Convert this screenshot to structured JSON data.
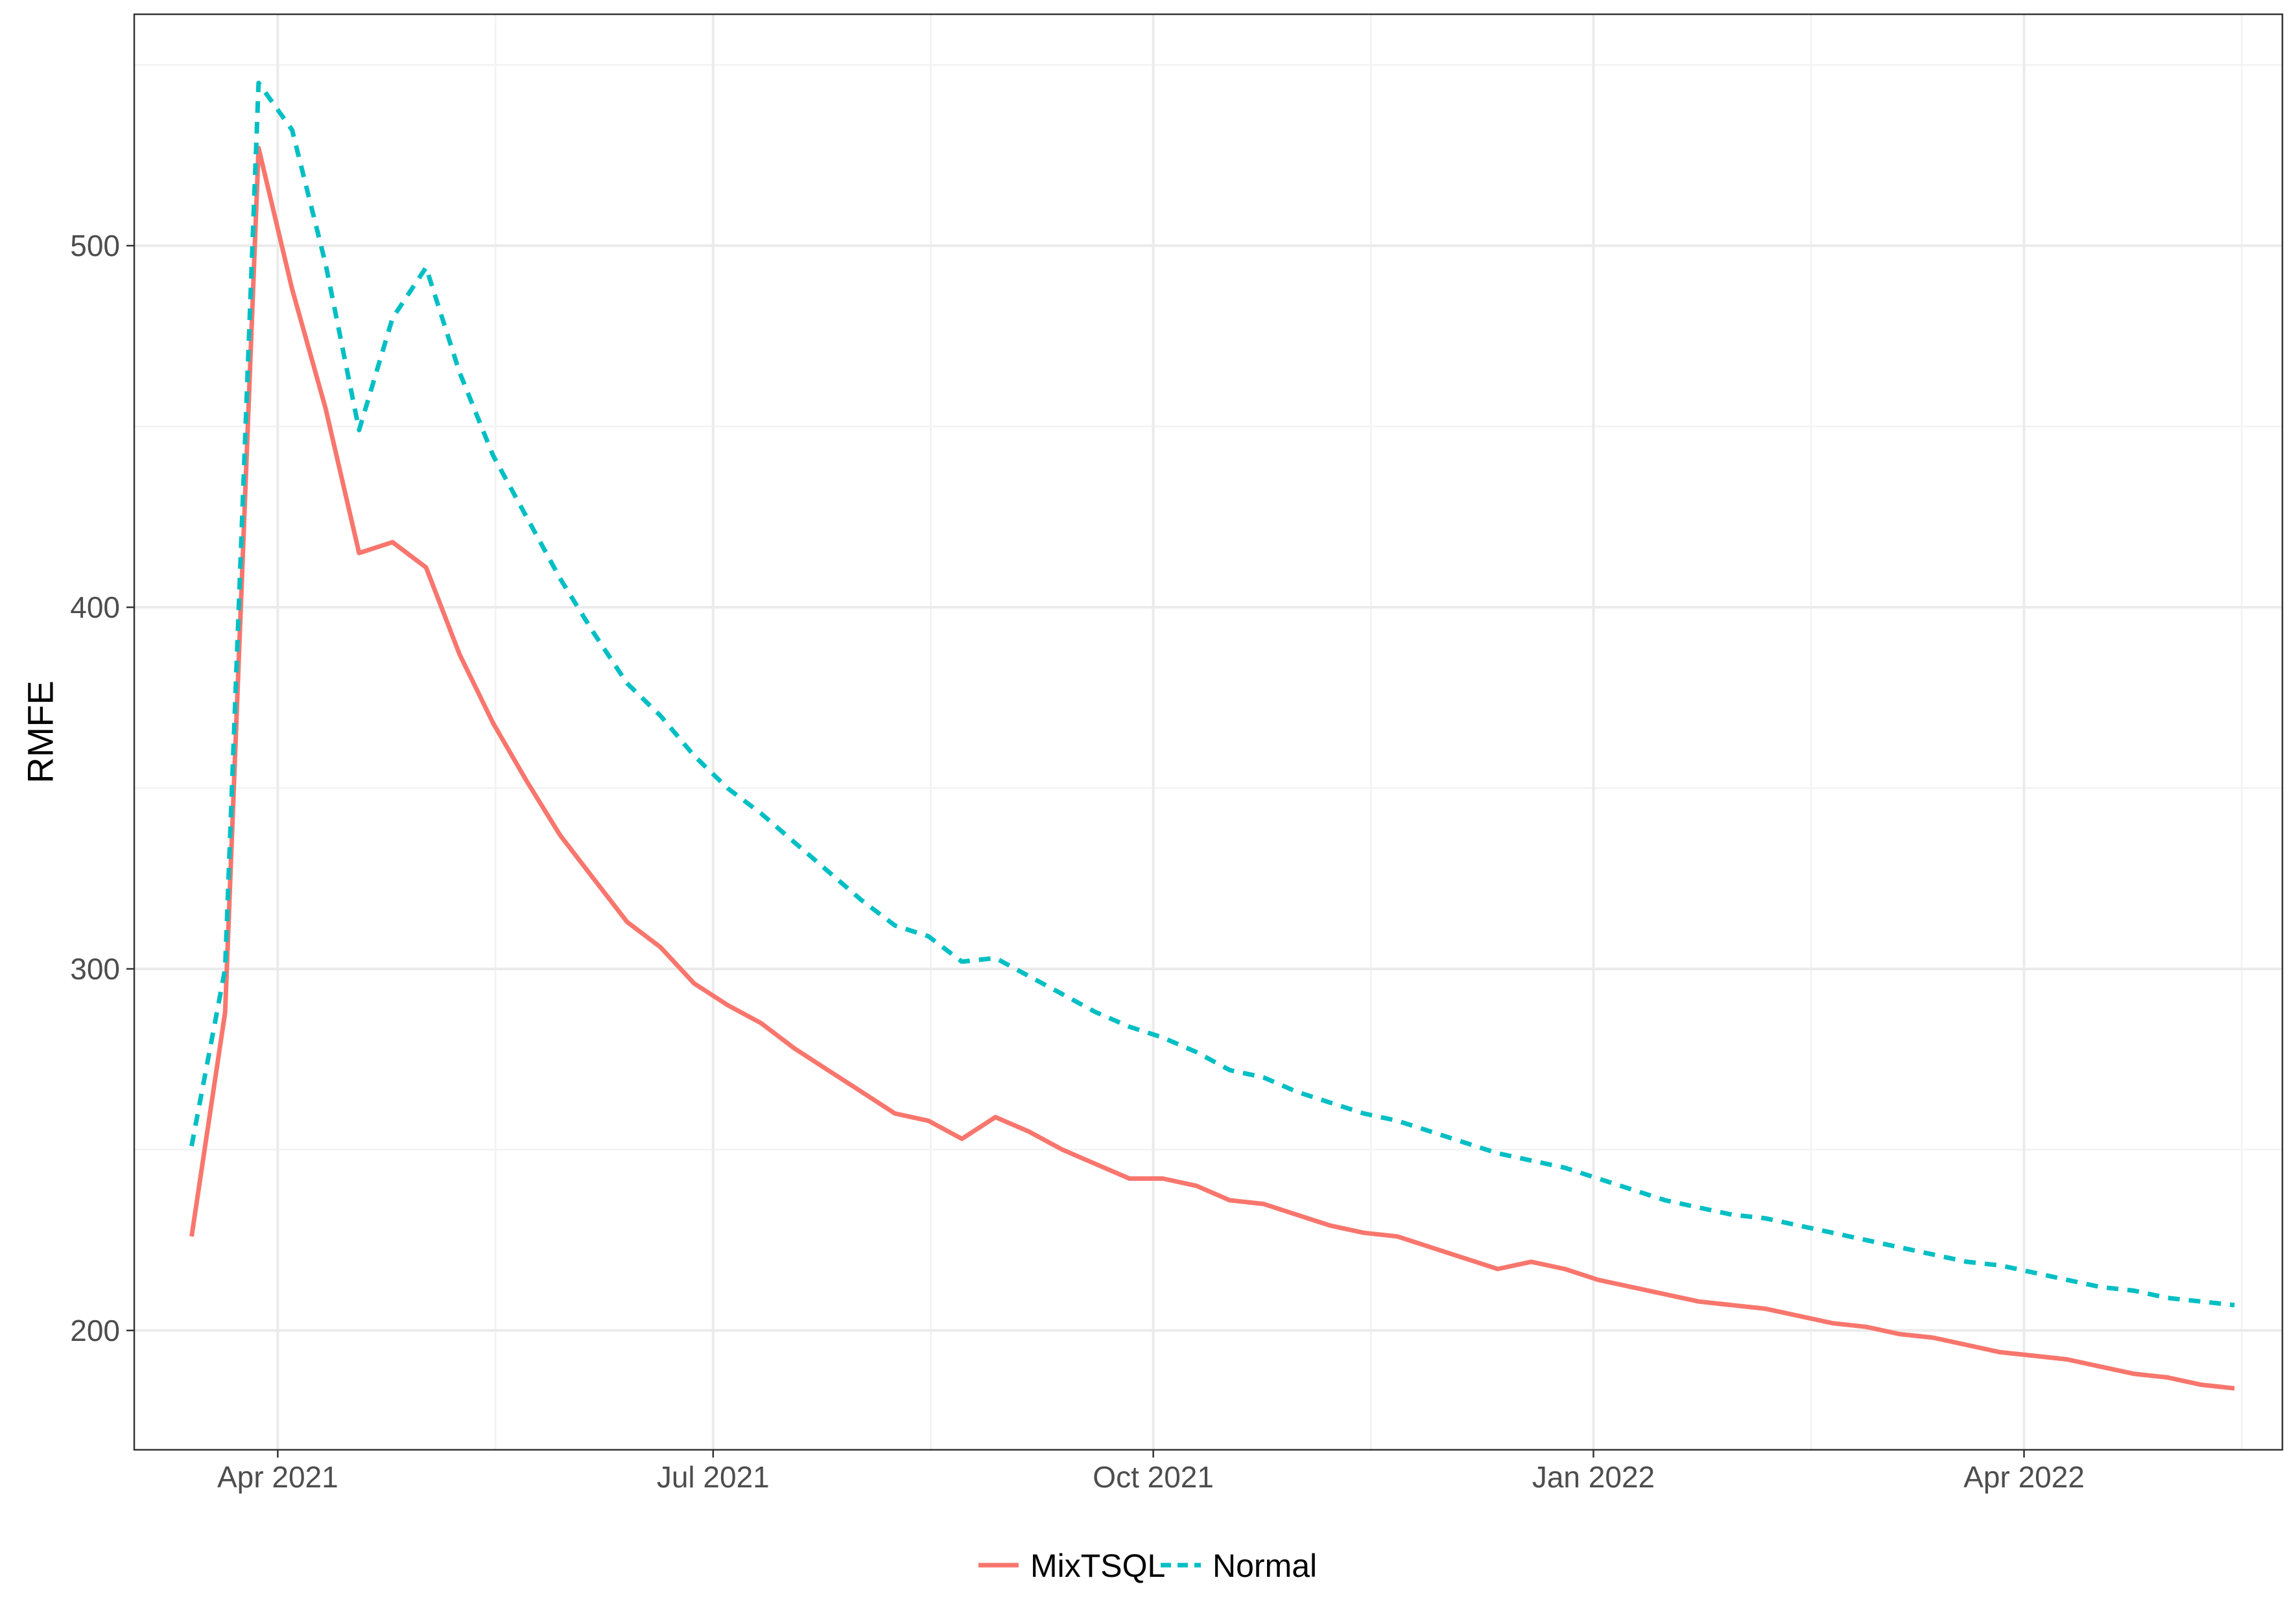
{
  "chart_data": {
    "type": "line",
    "title": "",
    "xlabel": "",
    "ylabel": "RMFE",
    "x_ticks": [
      "Apr 2021",
      "Jul 2021",
      "Oct 2021",
      "Jan 2022",
      "Apr 2022"
    ],
    "y_ticks": [
      200,
      300,
      400,
      500
    ],
    "ylim": [
      167,
      564
    ],
    "xlim": [
      "2021-03-02",
      "2022-05-25"
    ],
    "grid": true,
    "legend_position": "bottom",
    "series": [
      {
        "name": "MixTSQL",
        "color": "#F8766D",
        "line_style": "solid",
        "points": [
          [
            "2021-03-14",
            226
          ],
          [
            "2021-03-21",
            288
          ],
          [
            "2021-03-28",
            527
          ],
          [
            "2021-04-04",
            488
          ],
          [
            "2021-04-11",
            455
          ],
          [
            "2021-04-18",
            415
          ],
          [
            "2021-04-25",
            418
          ],
          [
            "2021-05-02",
            411
          ],
          [
            "2021-05-09",
            387
          ],
          [
            "2021-05-16",
            368
          ],
          [
            "2021-05-23",
            352
          ],
          [
            "2021-05-30",
            337
          ],
          [
            "2021-06-06",
            325
          ],
          [
            "2021-06-13",
            313
          ],
          [
            "2021-06-20",
            306
          ],
          [
            "2021-06-27",
            296
          ],
          [
            "2021-07-04",
            290
          ],
          [
            "2021-07-11",
            285
          ],
          [
            "2021-07-18",
            278
          ],
          [
            "2021-07-25",
            272
          ],
          [
            "2021-08-01",
            266
          ],
          [
            "2021-08-08",
            260
          ],
          [
            "2021-08-15",
            258
          ],
          [
            "2021-08-22",
            253
          ],
          [
            "2021-08-29",
            259
          ],
          [
            "2021-09-05",
            255
          ],
          [
            "2021-09-12",
            250
          ],
          [
            "2021-09-19",
            246
          ],
          [
            "2021-09-26",
            242
          ],
          [
            "2021-10-03",
            242
          ],
          [
            "2021-10-10",
            240
          ],
          [
            "2021-10-17",
            236
          ],
          [
            "2021-10-24",
            235
          ],
          [
            "2021-10-31",
            232
          ],
          [
            "2021-11-07",
            229
          ],
          [
            "2021-11-14",
            227
          ],
          [
            "2021-11-21",
            226
          ],
          [
            "2021-11-28",
            223
          ],
          [
            "2021-12-05",
            220
          ],
          [
            "2021-12-12",
            217
          ],
          [
            "2021-12-19",
            219
          ],
          [
            "2021-12-26",
            217
          ],
          [
            "2022-01-02",
            214
          ],
          [
            "2022-01-09",
            212
          ],
          [
            "2022-01-16",
            210
          ],
          [
            "2022-01-23",
            208
          ],
          [
            "2022-01-30",
            207
          ],
          [
            "2022-02-06",
            206
          ],
          [
            "2022-02-13",
            204
          ],
          [
            "2022-02-20",
            202
          ],
          [
            "2022-02-27",
            201
          ],
          [
            "2022-03-06",
            199
          ],
          [
            "2022-03-13",
            198
          ],
          [
            "2022-03-20",
            196
          ],
          [
            "2022-03-27",
            194
          ],
          [
            "2022-04-03",
            193
          ],
          [
            "2022-04-10",
            192
          ],
          [
            "2022-04-17",
            190
          ],
          [
            "2022-04-24",
            188
          ],
          [
            "2022-05-01",
            187
          ],
          [
            "2022-05-08",
            185
          ],
          [
            "2022-05-15",
            184
          ]
        ]
      },
      {
        "name": "Normal",
        "color": "#00BFC4",
        "line_style": "dashed",
        "points": [
          [
            "2021-03-14",
            251
          ],
          [
            "2021-03-21",
            300
          ],
          [
            "2021-03-28",
            545
          ],
          [
            "2021-04-04",
            532
          ],
          [
            "2021-04-11",
            495
          ],
          [
            "2021-04-18",
            449
          ],
          [
            "2021-04-25",
            480
          ],
          [
            "2021-05-02",
            494
          ],
          [
            "2021-05-09",
            465
          ],
          [
            "2021-05-16",
            442
          ],
          [
            "2021-05-23",
            425
          ],
          [
            "2021-05-30",
            408
          ],
          [
            "2021-06-06",
            393
          ],
          [
            "2021-06-13",
            379
          ],
          [
            "2021-06-20",
            370
          ],
          [
            "2021-06-27",
            359
          ],
          [
            "2021-07-04",
            350
          ],
          [
            "2021-07-11",
            343
          ],
          [
            "2021-07-18",
            335
          ],
          [
            "2021-07-25",
            327
          ],
          [
            "2021-08-01",
            319
          ],
          [
            "2021-08-08",
            312
          ],
          [
            "2021-08-15",
            309
          ],
          [
            "2021-08-22",
            302
          ],
          [
            "2021-08-29",
            303
          ],
          [
            "2021-09-05",
            298
          ],
          [
            "2021-09-12",
            293
          ],
          [
            "2021-09-19",
            288
          ],
          [
            "2021-09-26",
            284
          ],
          [
            "2021-10-03",
            281
          ],
          [
            "2021-10-10",
            277
          ],
          [
            "2021-10-17",
            272
          ],
          [
            "2021-10-24",
            270
          ],
          [
            "2021-10-31",
            266
          ],
          [
            "2021-11-07",
            263
          ],
          [
            "2021-11-14",
            260
          ],
          [
            "2021-11-21",
            258
          ],
          [
            "2021-11-28",
            255
          ],
          [
            "2021-12-05",
            252
          ],
          [
            "2021-12-12",
            249
          ],
          [
            "2021-12-19",
            247
          ],
          [
            "2021-12-26",
            245
          ],
          [
            "2022-01-02",
            242
          ],
          [
            "2022-01-09",
            239
          ],
          [
            "2022-01-16",
            236
          ],
          [
            "2022-01-23",
            234
          ],
          [
            "2022-01-30",
            232
          ],
          [
            "2022-02-06",
            231
          ],
          [
            "2022-02-13",
            229
          ],
          [
            "2022-02-20",
            227
          ],
          [
            "2022-02-27",
            225
          ],
          [
            "2022-03-06",
            223
          ],
          [
            "2022-03-13",
            221
          ],
          [
            "2022-03-20",
            219
          ],
          [
            "2022-03-27",
            218
          ],
          [
            "2022-04-03",
            216
          ],
          [
            "2022-04-10",
            214
          ],
          [
            "2022-04-17",
            212
          ],
          [
            "2022-04-24",
            211
          ],
          [
            "2022-05-01",
            209
          ],
          [
            "2022-05-08",
            208
          ],
          [
            "2022-05-15",
            207
          ]
        ]
      }
    ]
  }
}
